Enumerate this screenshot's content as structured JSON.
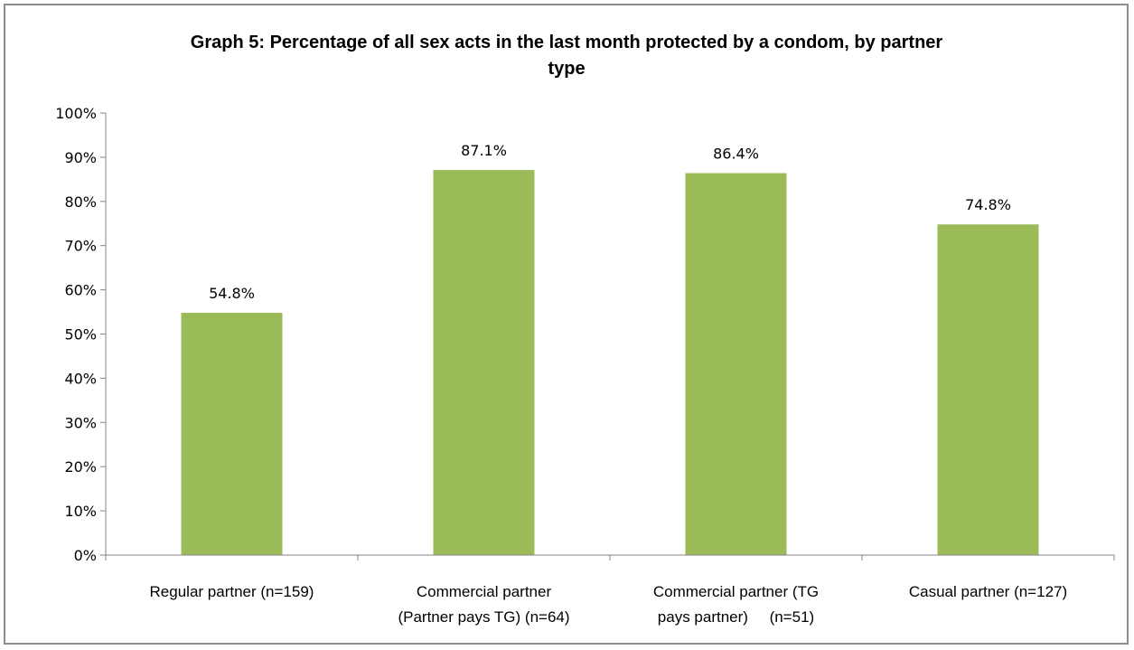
{
  "chart_data": {
    "type": "bar",
    "title_lines": [
      "Graph 5: Percentage of all sex acts in the last month protected by a condom, by partner",
      "type"
    ],
    "categories": [
      [
        "Regular partner (n=159)"
      ],
      [
        "Commercial partner",
        "(Partner pays TG) (n=64)"
      ],
      [
        "Commercial partner (TG",
        "pays partner)     (n=51)"
      ],
      [
        "Casual partner (n=127)"
      ]
    ],
    "values": [
      54.8,
      87.1,
      86.4,
      74.8
    ],
    "data_labels": [
      "54.8%",
      "87.1%",
      "86.4%",
      "74.8%"
    ],
    "ylim": [
      0,
      100
    ],
    "yticks": [
      "0%",
      "10%",
      "20%",
      "30%",
      "40%",
      "50%",
      "60%",
      "70%",
      "80%",
      "90%",
      "100%"
    ],
    "grid": false,
    "legend": "none",
    "bar_color": "#9bbb59"
  }
}
